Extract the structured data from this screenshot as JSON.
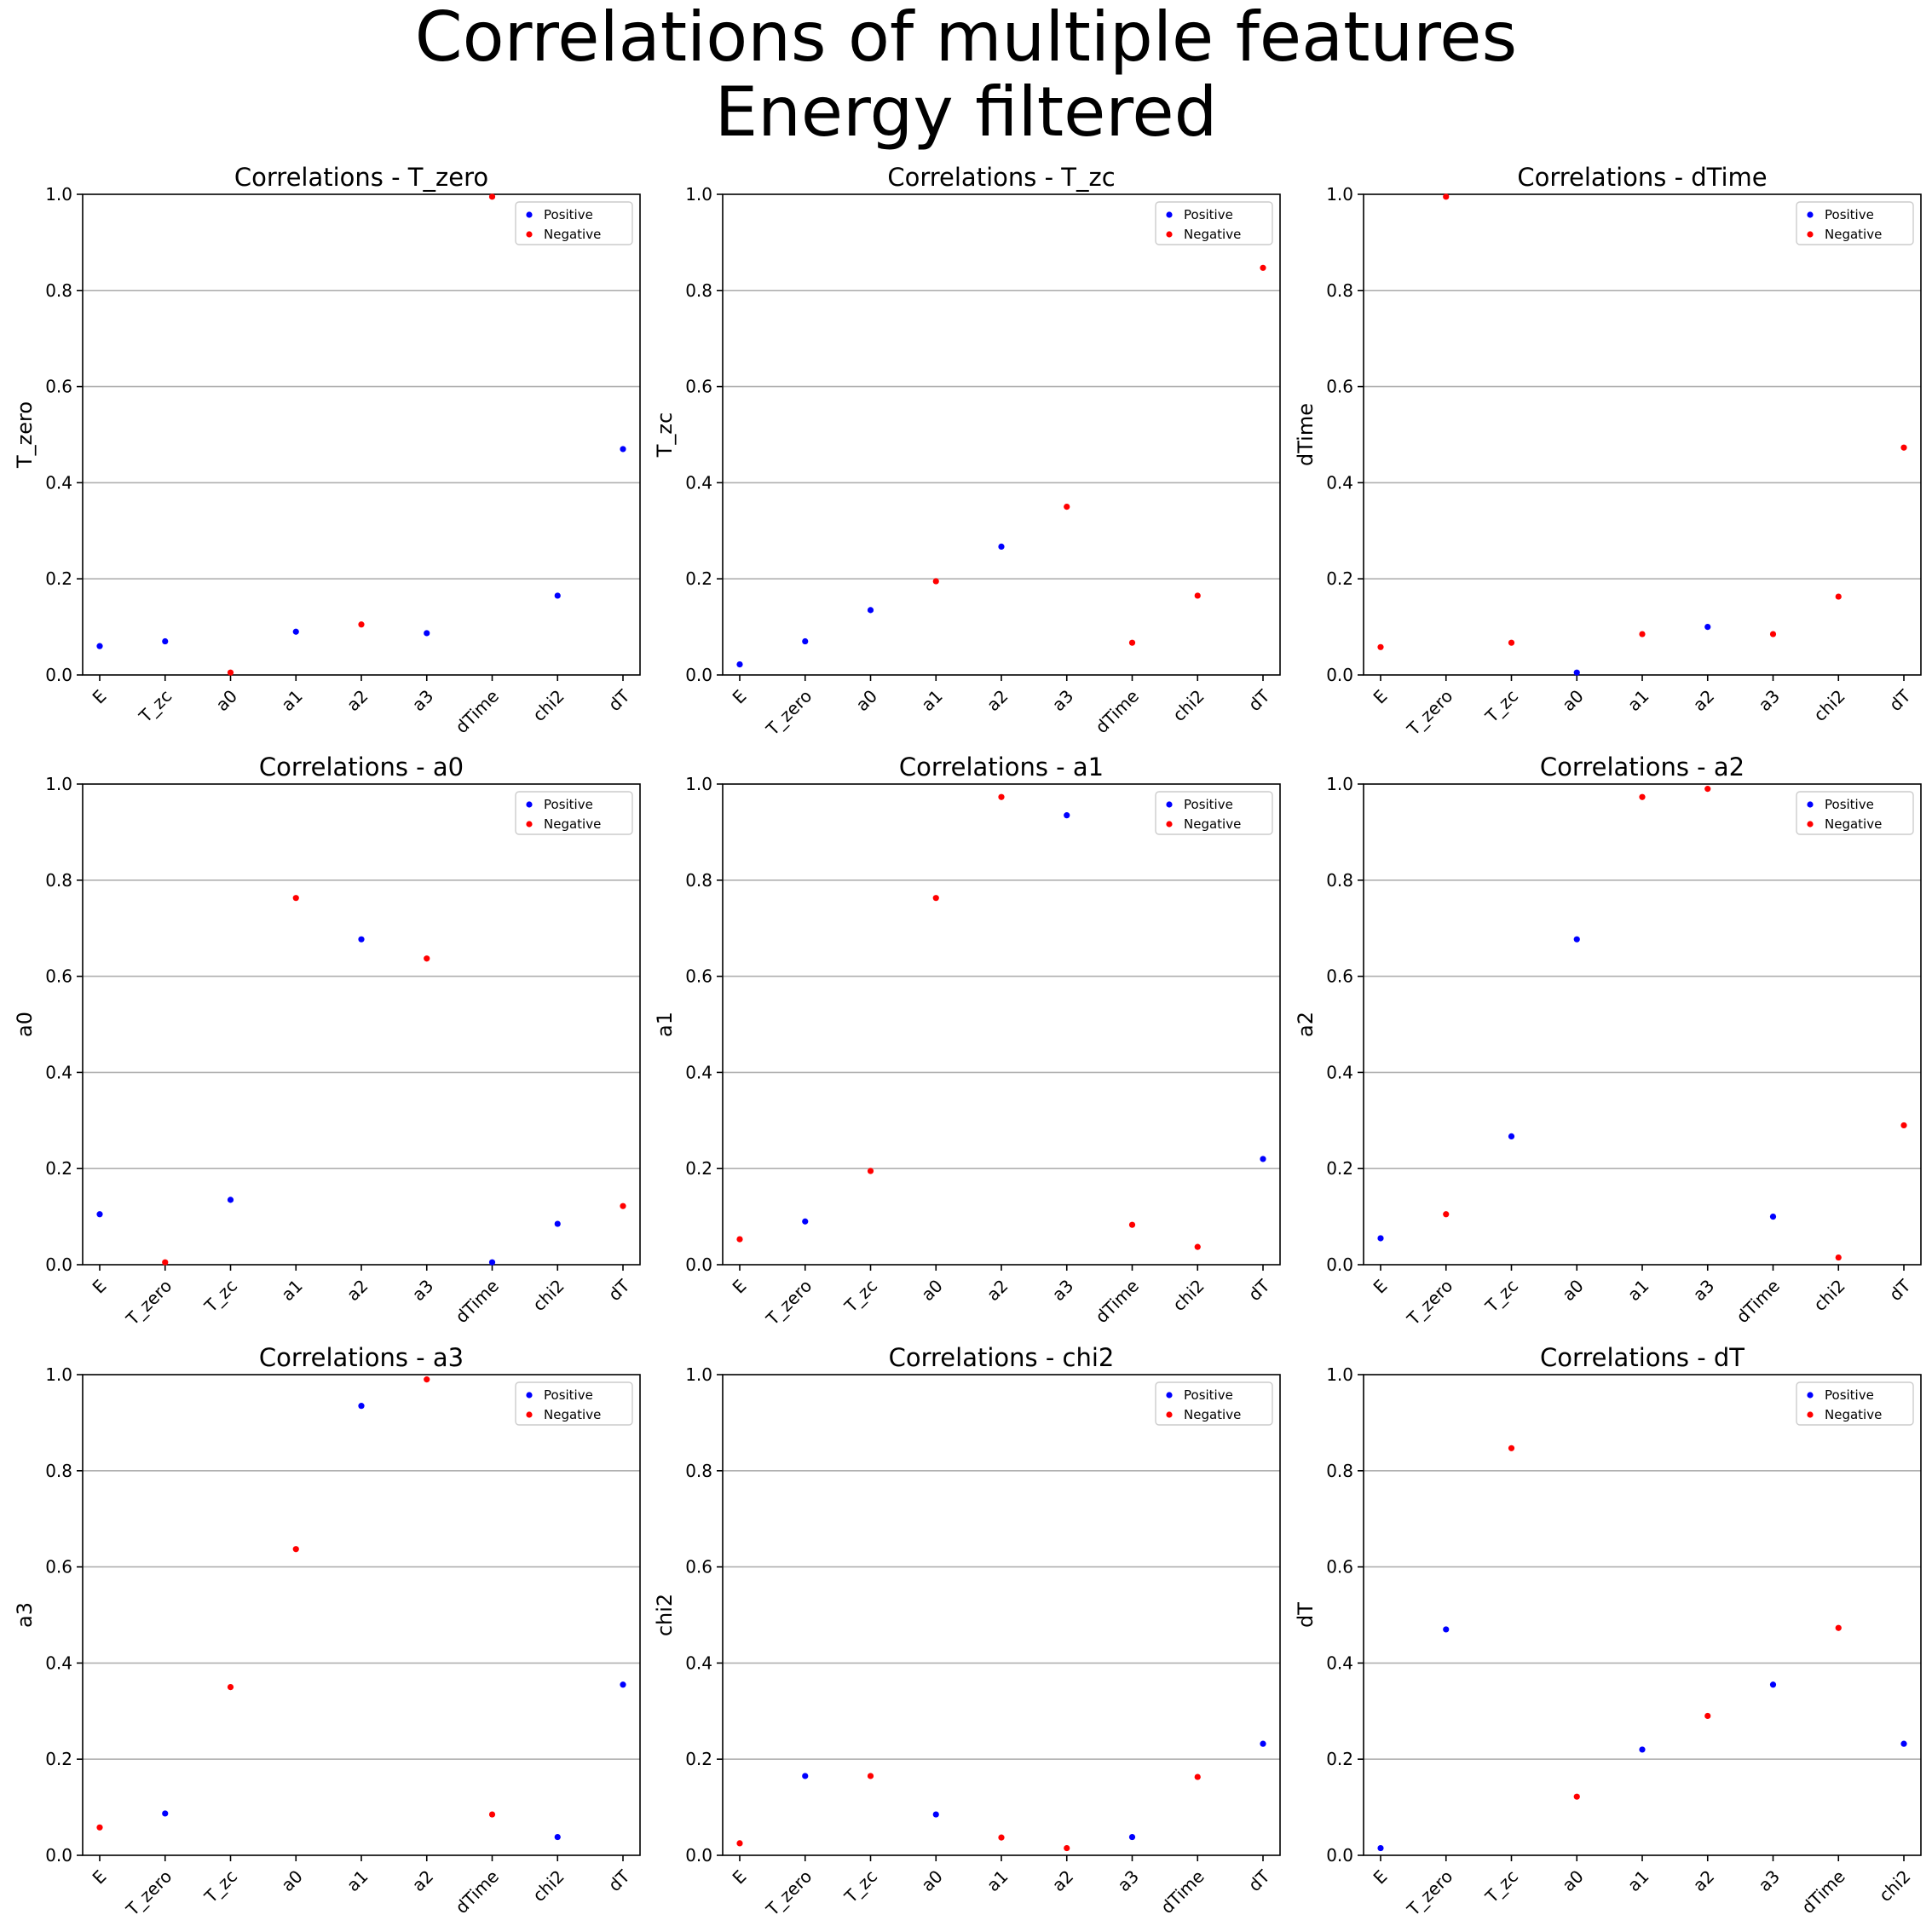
{
  "figure": {
    "title_line1": "Correlations of multiple features",
    "title_line2": "Energy filtered"
  },
  "colors": {
    "positive": "#0000ff",
    "negative": "#ff0000",
    "grid": "#b0b0b0"
  },
  "legend": {
    "positive": "Positive",
    "negative": "Negative",
    "placement": "upper right"
  },
  "chart_data": [
    {
      "type": "scatter",
      "title": "Correlations - T_zero",
      "ylabel": "T_zero",
      "xlabel": "",
      "ylim": [
        0,
        1
      ],
      "yticks": [
        "0.0",
        "0.2",
        "0.4",
        "0.6",
        "0.8",
        "1.0"
      ],
      "grid": "y",
      "categories": [
        "E",
        "T_zc",
        "a0",
        "a1",
        "a2",
        "a3",
        "dTime",
        "chi2",
        "dT"
      ],
      "values": [
        0.06,
        0.07,
        0.005,
        0.09,
        0.105,
        0.087,
        0.995,
        0.165,
        0.47
      ],
      "signs": [
        "+",
        "+",
        "-",
        "+",
        "-",
        "+",
        "-",
        "+",
        "+"
      ]
    },
    {
      "type": "scatter",
      "title": "Correlations - T_zc",
      "ylabel": "T_zc",
      "xlabel": "",
      "ylim": [
        0,
        1
      ],
      "yticks": [
        "0.0",
        "0.2",
        "0.4",
        "0.6",
        "0.8",
        "1.0"
      ],
      "grid": "y",
      "categories": [
        "E",
        "T_zero",
        "a0",
        "a1",
        "a2",
        "a3",
        "dTime",
        "chi2",
        "dT"
      ],
      "values": [
        0.022,
        0.07,
        0.135,
        0.195,
        0.267,
        0.35,
        0.067,
        0.165,
        0.847
      ],
      "signs": [
        "+",
        "+",
        "+",
        "-",
        "+",
        "-",
        "-",
        "-",
        "-"
      ]
    },
    {
      "type": "scatter",
      "title": "Correlations - dTime",
      "ylabel": "dTime",
      "xlabel": "",
      "ylim": [
        0,
        1
      ],
      "yticks": [
        "0.0",
        "0.2",
        "0.4",
        "0.6",
        "0.8",
        "1.0"
      ],
      "grid": "y",
      "categories": [
        "E",
        "T_zero",
        "T_zc",
        "a0",
        "a1",
        "a2",
        "a3",
        "chi2",
        "dT"
      ],
      "values": [
        0.058,
        0.995,
        0.067,
        0.005,
        0.085,
        0.1,
        0.085,
        0.163,
        0.473
      ],
      "signs": [
        "-",
        "-",
        "-",
        "+",
        "-",
        "+",
        "-",
        "-",
        "-"
      ]
    },
    {
      "type": "scatter",
      "title": "Correlations - a0",
      "ylabel": "a0",
      "xlabel": "",
      "ylim": [
        0,
        1
      ],
      "yticks": [
        "0.0",
        "0.2",
        "0.4",
        "0.6",
        "0.8",
        "1.0"
      ],
      "grid": "y",
      "categories": [
        "E",
        "T_zero",
        "T_zc",
        "a1",
        "a2",
        "a3",
        "dTime",
        "chi2",
        "dT"
      ],
      "values": [
        0.105,
        0.005,
        0.135,
        0.763,
        0.677,
        0.637,
        0.005,
        0.085,
        0.122
      ],
      "signs": [
        "+",
        "-",
        "+",
        "-",
        "+",
        "-",
        "+",
        "+",
        "-"
      ]
    },
    {
      "type": "scatter",
      "title": "Correlations - a1",
      "ylabel": "a1",
      "xlabel": "",
      "ylim": [
        0,
        1
      ],
      "yticks": [
        "0.0",
        "0.2",
        "0.4",
        "0.6",
        "0.8",
        "1.0"
      ],
      "grid": "y",
      "categories": [
        "E",
        "T_zero",
        "T_zc",
        "a0",
        "a2",
        "a3",
        "dTime",
        "chi2",
        "dT"
      ],
      "values": [
        0.053,
        0.09,
        0.195,
        0.763,
        0.973,
        0.935,
        0.083,
        0.037,
        0.22
      ],
      "signs": [
        "-",
        "+",
        "-",
        "-",
        "-",
        "+",
        "-",
        "-",
        "+"
      ]
    },
    {
      "type": "scatter",
      "title": "Correlations - a2",
      "ylabel": "a2",
      "xlabel": "",
      "ylim": [
        0,
        1
      ],
      "yticks": [
        "0.0",
        "0.2",
        "0.4",
        "0.6",
        "0.8",
        "1.0"
      ],
      "grid": "y",
      "categories": [
        "E",
        "T_zero",
        "T_zc",
        "a0",
        "a1",
        "a3",
        "dTime",
        "chi2",
        "dT"
      ],
      "values": [
        0.055,
        0.105,
        0.267,
        0.677,
        0.973,
        0.99,
        0.1,
        0.015,
        0.29
      ],
      "signs": [
        "+",
        "-",
        "+",
        "+",
        "-",
        "-",
        "+",
        "-",
        "-"
      ]
    },
    {
      "type": "scatter",
      "title": "Correlations - a3",
      "ylabel": "a3",
      "xlabel": "",
      "ylim": [
        0,
        1
      ],
      "yticks": [
        "0.0",
        "0.2",
        "0.4",
        "0.6",
        "0.8",
        "1.0"
      ],
      "grid": "y",
      "categories": [
        "E",
        "T_zero",
        "T_zc",
        "a0",
        "a1",
        "a2",
        "dTime",
        "chi2",
        "dT"
      ],
      "values": [
        0.058,
        0.087,
        0.35,
        0.637,
        0.935,
        0.99,
        0.085,
        0.038,
        0.355
      ],
      "signs": [
        "-",
        "+",
        "-",
        "-",
        "+",
        "-",
        "-",
        "+",
        "+"
      ]
    },
    {
      "type": "scatter",
      "title": "Correlations - chi2",
      "ylabel": "chi2",
      "xlabel": "",
      "ylim": [
        0,
        1
      ],
      "yticks": [
        "0.0",
        "0.2",
        "0.4",
        "0.6",
        "0.8",
        "1.0"
      ],
      "grid": "y",
      "categories": [
        "E",
        "T_zero",
        "T_zc",
        "a0",
        "a1",
        "a2",
        "a3",
        "dTime",
        "dT"
      ],
      "values": [
        0.025,
        0.165,
        0.165,
        0.085,
        0.037,
        0.015,
        0.038,
        0.163,
        0.232
      ],
      "signs": [
        "-",
        "+",
        "-",
        "+",
        "-",
        "-",
        "+",
        "-",
        "+"
      ]
    },
    {
      "type": "scatter",
      "title": "Correlations - dT",
      "ylabel": "dT",
      "xlabel": "",
      "ylim": [
        0,
        1
      ],
      "yticks": [
        "0.0",
        "0.2",
        "0.4",
        "0.6",
        "0.8",
        "1.0"
      ],
      "grid": "y",
      "categories": [
        "E",
        "T_zero",
        "T_zc",
        "a0",
        "a1",
        "a2",
        "a3",
        "dTime",
        "chi2"
      ],
      "values": [
        0.015,
        0.47,
        0.847,
        0.122,
        0.22,
        0.29,
        0.355,
        0.473,
        0.232
      ],
      "signs": [
        "+",
        "+",
        "-",
        "-",
        "+",
        "-",
        "+",
        "-",
        "+"
      ]
    }
  ]
}
